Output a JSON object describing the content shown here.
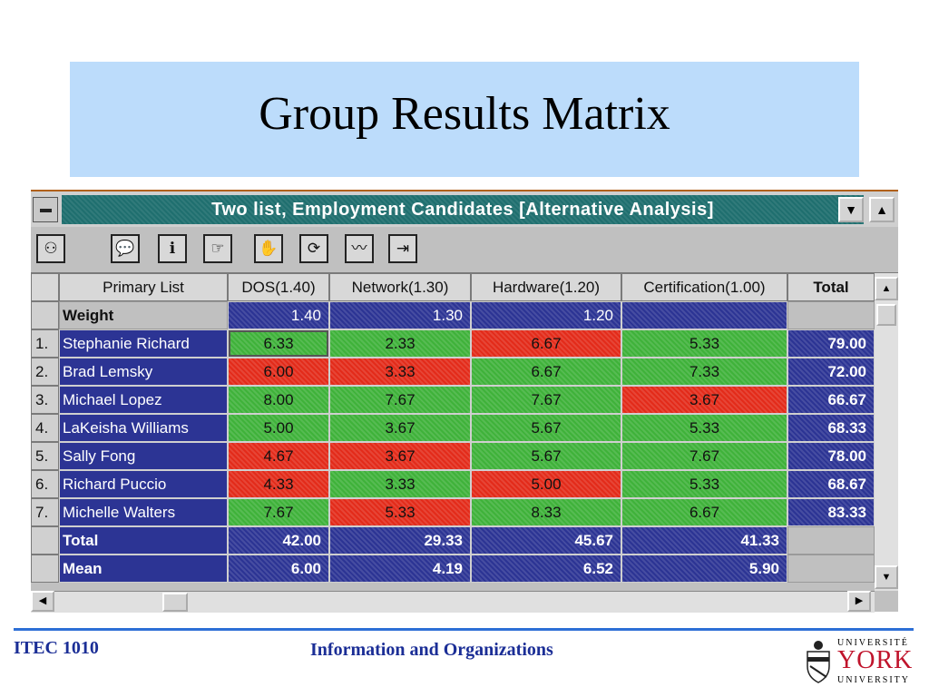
{
  "slide": {
    "title": "Group Results Matrix",
    "footer_left": "ITEC 1010",
    "footer_center": "Information and Organizations",
    "logo": {
      "top": "UNIVERSITÉ",
      "main": "YORK",
      "bottom": "UNIVERSITY"
    }
  },
  "window": {
    "title": "Two list, Employment Candidates [Alternative Analysis]",
    "sysmenu_glyph": "−",
    "minimize_glyph": "▼",
    "maximize_glyph": "▲"
  },
  "toolbar": {
    "buttons": [
      {
        "icon": "glasses-icon",
        "glyph": "⚇"
      },
      {
        "icon": "speech-bubble-icon",
        "glyph": "💬"
      },
      {
        "icon": "info-phone-icon",
        "glyph": "ℹ"
      },
      {
        "icon": "pointing-hand-icon",
        "glyph": "☞"
      },
      {
        "icon": "hand-icon",
        "glyph": "✋"
      },
      {
        "icon": "refresh-icon",
        "glyph": "⟳"
      },
      {
        "icon": "line-graph-icon",
        "glyph": "〰"
      },
      {
        "icon": "exit-icon",
        "glyph": "⇥"
      }
    ]
  },
  "table": {
    "headers": [
      "Primary List",
      "DOS(1.40)",
      "Network(1.30)",
      "Hardware(1.20)",
      "Certification(1.00)",
      "Total"
    ],
    "weight": {
      "label": "Weight",
      "values": [
        "1.40",
        "1.30",
        "1.20",
        ""
      ]
    },
    "rows": [
      {
        "num": "1.",
        "name": "Stephanie Richard",
        "values": [
          "6.33",
          "2.33",
          "6.67",
          "5.33"
        ],
        "colors": [
          "green",
          "green",
          "red",
          "green"
        ],
        "total": "79.00"
      },
      {
        "num": "2.",
        "name": "Brad Lemsky",
        "values": [
          "6.00",
          "3.33",
          "6.67",
          "7.33"
        ],
        "colors": [
          "red",
          "red",
          "green",
          "green"
        ],
        "total": "72.00"
      },
      {
        "num": "3.",
        "name": "Michael Lopez",
        "values": [
          "8.00",
          "7.67",
          "7.67",
          "3.67"
        ],
        "colors": [
          "green",
          "green",
          "green",
          "red"
        ],
        "total": "66.67"
      },
      {
        "num": "4.",
        "name": "LaKeisha Williams",
        "values": [
          "5.00",
          "3.67",
          "5.67",
          "5.33"
        ],
        "colors": [
          "green",
          "green",
          "green",
          "green"
        ],
        "total": "68.33"
      },
      {
        "num": "5.",
        "name": "Sally Fong",
        "values": [
          "4.67",
          "3.67",
          "5.67",
          "7.67"
        ],
        "colors": [
          "red",
          "red",
          "green",
          "green"
        ],
        "total": "78.00"
      },
      {
        "num": "6.",
        "name": "Richard Puccio",
        "values": [
          "4.33",
          "3.33",
          "5.00",
          "5.33"
        ],
        "colors": [
          "red",
          "green",
          "red",
          "green"
        ],
        "total": "68.67"
      },
      {
        "num": "7.",
        "name": "Michelle Walters",
        "values": [
          "7.67",
          "5.33",
          "8.33",
          "6.67"
        ],
        "colors": [
          "green",
          "red",
          "green",
          "green"
        ],
        "total": "83.33"
      }
    ],
    "total": {
      "label": "Total",
      "values": [
        "42.00",
        "29.33",
        "45.67",
        "41.33"
      ]
    },
    "mean": {
      "label": "Mean",
      "values": [
        "6.00",
        "4.19",
        "6.52",
        "5.90"
      ]
    },
    "colors": {
      "green": "#3fb23a",
      "red": "#e32b1a",
      "navy": "#2c3494"
    }
  },
  "scroll": {
    "up": "▲",
    "down": "▼",
    "left": "◀",
    "right": "▶"
  }
}
